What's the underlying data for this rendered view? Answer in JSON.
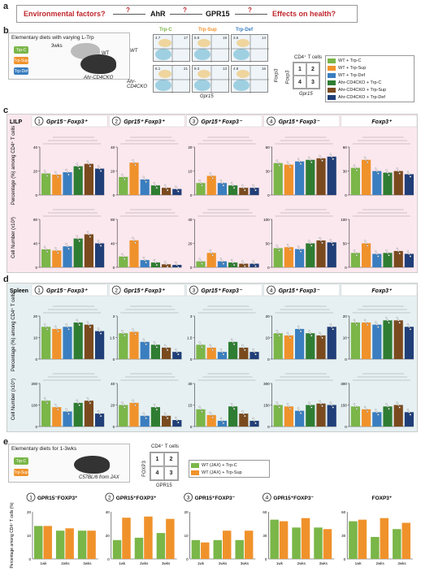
{
  "panel_a": {
    "letter": "a",
    "env": "Environmental factors?",
    "ahr": "AhR",
    "gpr15": "GPR15",
    "effects": "Effects on health?",
    "q": "?"
  },
  "panel_b": {
    "letter": "b",
    "title": "Elementary diets with varying L-Trp",
    "diets": [
      "Trp-C",
      "Trp-Sup",
      "Trp-Def"
    ],
    "weeks": "3wks",
    "wt": "WT",
    "ko": "Ahr-CD4CKO",
    "plot_headers": [
      "Trp-C",
      "Trp-Sup",
      "Trp-Def"
    ],
    "row_labels": [
      "WT",
      "Ahr-\nCD4CKO"
    ],
    "xaxis": "Gpr15",
    "yaxis": "Foxp3",
    "quad_numbers": [
      "4.7",
      "17",
      "5.9",
      "19",
      "3.6",
      "14",
      "6.1",
      "21",
      "9.3",
      "13",
      "4.8",
      "16"
    ],
    "cd4_label": "CD4⁺ T cells",
    "quad": [
      "1",
      "2",
      "4",
      "3"
    ],
    "legend": [
      {
        "text": "WT + Trp-C",
        "color": "#7ab648"
      },
      {
        "text": "WT + Trp-Sup",
        "color": "#f0922b"
      },
      {
        "text": "WT + Trp-Def",
        "color": "#3a7ec0"
      },
      {
        "text": "Ahr-CD4CKO + Trp-C",
        "color": "#2f7d32"
      },
      {
        "text": "Ahr-CD4CKO + Trp-Sup",
        "color": "#7a4a1e"
      },
      {
        "text": "Ahr-CD4CKO + Trp-Def",
        "color": "#203e78"
      }
    ]
  },
  "panel_c": {
    "letter": "c",
    "tissue": "LILP",
    "headers": [
      "Gpr15⁻ Foxp3⁺",
      "Gpr15⁺ Foxp3⁺",
      "Gpr15⁺ Foxp3⁻",
      "Gpr15⁺ Foxp3⁻",
      "Foxp3⁺"
    ],
    "nums": [
      "1",
      "2",
      "3",
      "4",
      ""
    ],
    "ylabel_pct": "Percentage (%) among CD4⁺ T cells",
    "ylabel_num": "Cell Number (x10³)"
  },
  "panel_d": {
    "letter": "d",
    "tissue": "Spleen",
    "headers": [
      "Gpr15⁻ Foxp3⁺",
      "Gpr15⁺ Foxp3⁺",
      "Gpr15⁺ Foxp3⁻",
      "Gpr15⁺ Foxp3⁻",
      "Foxp3⁺"
    ],
    "nums": [
      "1",
      "2",
      "3",
      "4",
      ""
    ],
    "ylabel_pct": "Percentage (%) among CD4⁺ T cells",
    "ylabel_num": "Cell Number (x10⁵)"
  },
  "panel_e": {
    "letter": "e",
    "title": "Elementary diets for 1-3wks",
    "diets": [
      "Trp-C",
      "Trp-Sup"
    ],
    "mouse": "C57BL/6 from JAX",
    "cd4_label": "CD4⁺ T cells",
    "xaxis": "GPR15",
    "yaxis": "FOXP3",
    "quad": [
      "1",
      "2",
      "4",
      "3"
    ],
    "legend": [
      {
        "text": "WT (JAX) + Trp-C",
        "color": "#7ab648"
      },
      {
        "text": "WT (JAX) + Trp-Sup",
        "color": "#f0922b"
      }
    ],
    "headers": [
      "GPR15⁻FOXP3⁺",
      "GPR15⁺FOXP3⁺",
      "GPR15⁺FOXP3⁻",
      "GPR15⁺FOXP3⁻",
      "FOXP3⁺"
    ],
    "nums": [
      "1",
      "2",
      "3",
      "4",
      ""
    ],
    "ylabel": "Percentage among CD4⁺ T cells (%)",
    "weeks": [
      "1wk",
      "2wks",
      "3wks"
    ]
  },
  "chart_data": [
    {
      "type": "bar",
      "panel": "c-pct",
      "series_colors": [
        "#7ab648",
        "#f0922b",
        "#3a7ec0",
        "#2f7d32",
        "#7a4a1e",
        "#203e78"
      ],
      "groups": [
        [
          18,
          17,
          19,
          24,
          26,
          22
        ],
        [
          15,
          27,
          13,
          8,
          6,
          5
        ],
        [
          5,
          8,
          5,
          4,
          3,
          3
        ],
        [
          40,
          38,
          42,
          44,
          46,
          48
        ],
        [
          34,
          44,
          30,
          28,
          30,
          26
        ]
      ],
      "ymax": [
        40,
        40,
        20,
        60,
        60
      ]
    },
    {
      "type": "bar",
      "panel": "c-num",
      "series_colors": [
        "#7ab648",
        "#f0922b",
        "#3a7ec0",
        "#2f7d32",
        "#7a4a1e",
        "#203e78"
      ],
      "groups": [
        [
          30,
          28,
          35,
          48,
          55,
          40
        ],
        [
          18,
          45,
          12,
          8,
          5,
          4
        ],
        [
          5,
          12,
          5,
          4,
          3,
          3
        ],
        [
          40,
          42,
          38,
          50,
          56,
          52
        ],
        [
          30,
          50,
          28,
          30,
          34,
          28
        ]
      ],
      "ymax": [
        80,
        80,
        40,
        100,
        100
      ]
    },
    {
      "type": "bar",
      "panel": "d-pct",
      "series_colors": [
        "#7ab648",
        "#f0922b",
        "#3a7ec0",
        "#2f7d32",
        "#7a4a1e",
        "#203e78"
      ],
      "groups": [
        [
          15,
          14,
          15,
          17,
          16,
          13
        ],
        [
          1.8,
          1.9,
          1.2,
          1.0,
          0.8,
          0.5
        ],
        [
          1.0,
          0.8,
          0.5,
          1.2,
          0.8,
          0.5
        ],
        [
          12,
          11,
          14,
          12,
          11,
          15
        ],
        [
          17,
          17,
          16,
          18,
          18,
          15
        ]
      ],
      "ymax": [
        20,
        3,
        3,
        20,
        20
      ]
    },
    {
      "type": "bar",
      "panel": "d-num",
      "series_colors": [
        "#7ab648",
        "#f0922b",
        "#3a7ec0",
        "#2f7d32",
        "#7a4a1e",
        "#203e78"
      ],
      "groups": [
        [
          120,
          90,
          70,
          110,
          120,
          60
        ],
        [
          20,
          22,
          10,
          18,
          10,
          6
        ],
        [
          12,
          8,
          4,
          14,
          9,
          4
        ],
        [
          150,
          140,
          110,
          150,
          160,
          150
        ],
        [
          140,
          120,
          100,
          140,
          150,
          100
        ]
      ],
      "ymax": [
        200,
        40,
        30,
        300,
        300
      ]
    },
    {
      "type": "bar",
      "panel": "e-pct",
      "series_colors": [
        "#7ab648",
        "#f0922b"
      ],
      "groups": [
        [
          [
            14,
            14
          ],
          [
            12,
            13
          ],
          [
            12,
            12
          ]
        ],
        [
          [
            16,
            35
          ],
          [
            18,
            36
          ],
          [
            22,
            34
          ]
        ],
        [
          [
            8,
            7
          ],
          [
            8,
            12
          ],
          [
            8,
            12
          ]
        ],
        [
          [
            50,
            48
          ],
          [
            40,
            52
          ],
          [
            40,
            38
          ]
        ],
        [
          [
            48,
            50
          ],
          [
            28,
            52
          ],
          [
            38,
            46
          ]
        ]
      ],
      "ymax": [
        20,
        40,
        20,
        60,
        60
      ]
    }
  ]
}
